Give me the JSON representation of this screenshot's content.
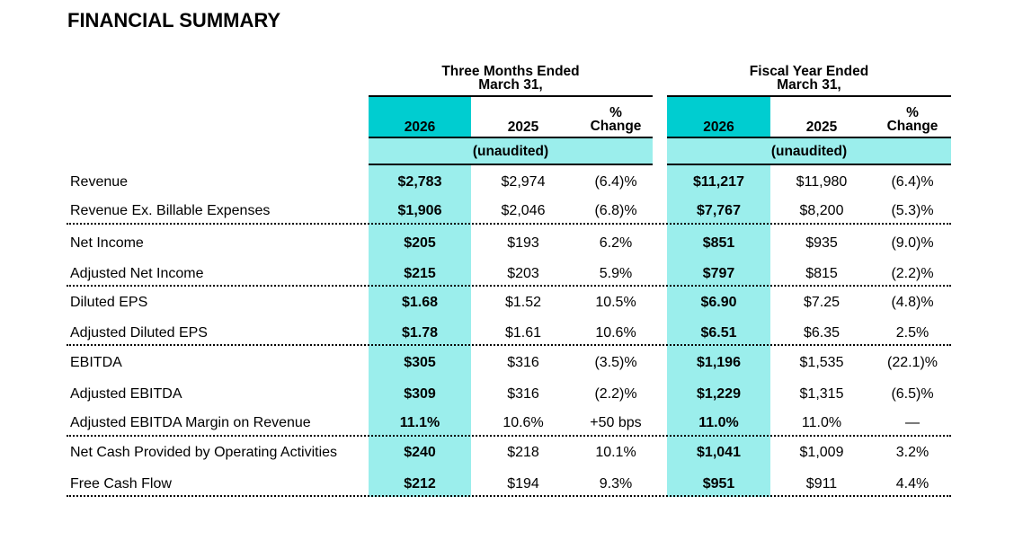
{
  "title": "FINANCIAL SUMMARY",
  "groups": {
    "three_months": {
      "line1": "Three Months Ended",
      "line2": "March 31,"
    },
    "fiscal_year": {
      "line1": "Fiscal Year Ended",
      "line2": "March 31,"
    }
  },
  "columns": {
    "y2026": "2026",
    "y2025": "2025",
    "pct_line1": "%",
    "pct_line2": "Change",
    "unaudited": "(unaudited)"
  },
  "rows": [
    {
      "label": "Revenue",
      "q2026": "$2,783",
      "q2025": "$2,974",
      "qchg": "(6.4)%",
      "f2026": "$11,217",
      "f2025": "$11,980",
      "fchg": "(6.4)%"
    },
    {
      "label": "Revenue Ex. Billable Expenses",
      "q2026": "$1,906",
      "q2025": "$2,046",
      "qchg": "(6.8)%",
      "f2026": "$7,767",
      "f2025": "$8,200",
      "fchg": "(5.3)%"
    },
    {
      "label": "Net Income",
      "q2026": "$205",
      "q2025": "$193",
      "qchg": "6.2%",
      "f2026": "$851",
      "f2025": "$935",
      "fchg": "(9.0)%"
    },
    {
      "label": "Adjusted Net Income",
      "q2026": "$215",
      "q2025": "$203",
      "qchg": "5.9%",
      "f2026": "$797",
      "f2025": "$815",
      "fchg": "(2.2)%"
    },
    {
      "label": "Diluted EPS",
      "q2026": "$1.68",
      "q2025": "$1.52",
      "qchg": "10.5%",
      "f2026": "$6.90",
      "f2025": "$7.25",
      "fchg": "(4.8)%"
    },
    {
      "label": "Adjusted Diluted EPS",
      "q2026": "$1.78",
      "q2025": "$1.61",
      "qchg": "10.6%",
      "f2026": "$6.51",
      "f2025": "$6.35",
      "fchg": "2.5%"
    },
    {
      "label": "EBITDA",
      "q2026": "$305",
      "q2025": "$316",
      "qchg": "(3.5)%",
      "f2026": "$1,196",
      "f2025": "$1,535",
      "fchg": "(22.1)%"
    },
    {
      "label": "Adjusted EBITDA",
      "q2026": "$309",
      "q2025": "$316",
      "qchg": "(2.2)%",
      "f2026": "$1,229",
      "f2025": "$1,315",
      "fchg": "(6.5)%"
    },
    {
      "label": "Adjusted EBITDA Margin on Revenue",
      "q2026": "11.1%",
      "q2025": "10.6%",
      "qchg": "+50 bps",
      "f2026": "11.0%",
      "f2025": "11.0%",
      "fchg": "—"
    },
    {
      "label": "Net Cash Provided by Operating Activities",
      "q2026": "$240",
      "q2025": "$218",
      "qchg": "10.1%",
      "f2026": "$1,041",
      "f2025": "$1,009",
      "fchg": "3.2%"
    },
    {
      "label": "Free Cash Flow",
      "q2026": "$212",
      "q2025": "$194",
      "qchg": "9.3%",
      "f2026": "$951",
      "f2025": "$911",
      "fchg": "4.4%"
    }
  ],
  "colors": {
    "highlight": "#00cdd0",
    "band": "#9beeec"
  }
}
